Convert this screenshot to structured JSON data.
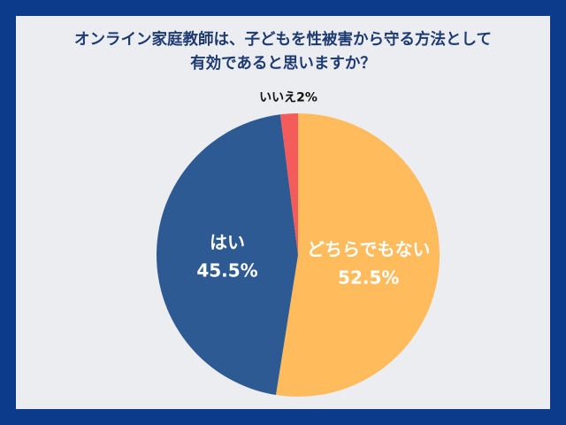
{
  "title_lines": [
    "オンライン家庭教師は、子どもを性被害から守る方法として",
    "有効であると思いますか？"
  ],
  "colors": {
    "frame": "#0c3b8c",
    "panel": "#ecedf0",
    "title": "#1d3a73",
    "outside_label": "#111111",
    "inside_label": "#ffffff"
  },
  "chart_data": {
    "type": "pie",
    "start_angle_deg": 0,
    "direction": "clockwise",
    "slices": [
      {
        "label": "どちらでもない",
        "value": 52.5,
        "value_text": "52.5%",
        "color": "#ffbb5c",
        "label_position": "inside"
      },
      {
        "label": "はい",
        "value": 45.5,
        "value_text": "45.5%",
        "color": "#2d5a92",
        "label_position": "inside"
      },
      {
        "label": "いいえ",
        "value": 2,
        "value_text": "2%",
        "color": "#f45b5b",
        "label_position": "outside"
      }
    ]
  }
}
